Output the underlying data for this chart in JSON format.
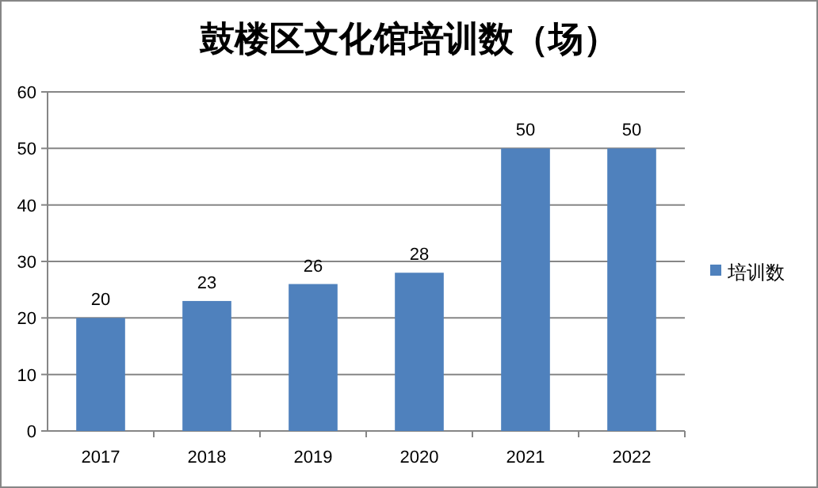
{
  "chart_data": {
    "type": "bar",
    "title": "鼓楼区文化馆培训数（场）",
    "categories": [
      "2017",
      "2018",
      "2019",
      "2020",
      "2021",
      "2022"
    ],
    "series": [
      {
        "name": "培训数",
        "color": "#4f81bd",
        "values": [
          20,
          23,
          26,
          28,
          50,
          50
        ]
      }
    ],
    "ylim": [
      0,
      60
    ],
    "yticks": [
      0,
      10,
      20,
      30,
      40,
      50,
      60
    ],
    "grid": "y",
    "legend": "right",
    "data_labels": true
  }
}
